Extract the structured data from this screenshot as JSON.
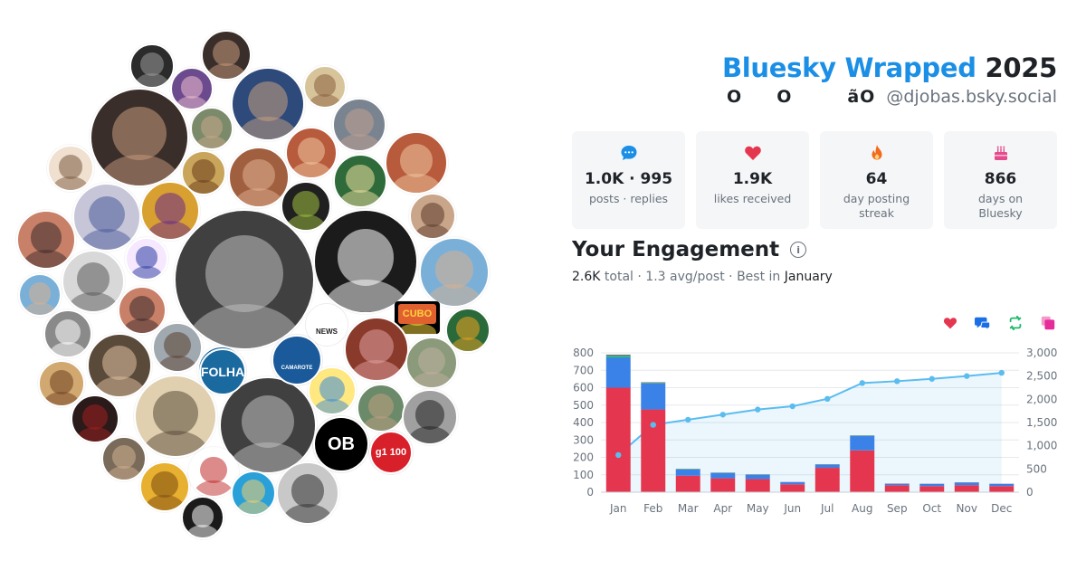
{
  "header": {
    "brand": "Bluesky Wrapped",
    "year": "2025",
    "display_name": "O     O        ãO",
    "handle": "@djobas.bsky.social"
  },
  "stats": [
    {
      "icon": "speech-bubble-icon",
      "value": "1.0K · 995",
      "label": "posts · replies",
      "color": "#1b8fe6"
    },
    {
      "icon": "heart-icon",
      "value": "1.9K",
      "label": "likes received",
      "color": "#e5364f"
    },
    {
      "icon": "flame-icon",
      "value": "64",
      "label": "day posting streak",
      "color": "#f26a1b"
    },
    {
      "icon": "cake-icon",
      "value": "866",
      "label": "days on Bluesky",
      "color": "#e44a8c"
    }
  ],
  "engagement": {
    "title": "Your Engagement",
    "total_value": "2.6K",
    "total_label": "total",
    "avg_text": "1.3 avg/post",
    "best_label": "Best in",
    "best_month": "January",
    "legend_icons": [
      {
        "icon": "heart-icon",
        "color": "#e5364f"
      },
      {
        "icon": "reply-icon",
        "color": "#1b6fe6"
      },
      {
        "icon": "repost-icon",
        "color": "#1fb86b"
      },
      {
        "icon": "quote-icon",
        "color": "#e42c9b"
      }
    ]
  },
  "chart_data": {
    "type": "bar",
    "categories": [
      "Jan",
      "Feb",
      "Mar",
      "Apr",
      "May",
      "Jun",
      "Jul",
      "Aug",
      "Sep",
      "Oct",
      "Nov",
      "Dec"
    ],
    "series": [
      {
        "values": [
          600,
          475,
          95,
          80,
          75,
          45,
          140,
          240,
          40,
          35,
          40,
          35
        ],
        "color": "#e5364f"
      },
      {
        "values": [
          175,
          150,
          35,
          30,
          25,
          12,
          18,
          82,
          8,
          12,
          15,
          12
        ],
        "color": "#3b82e8"
      },
      {
        "values": [
          12,
          5,
          3,
          2,
          2,
          1,
          2,
          3,
          1,
          1,
          1,
          1
        ],
        "color": "#1fb86b"
      },
      {
        "values": [
          3,
          2,
          1,
          1,
          1,
          1,
          1,
          1,
          1,
          1,
          1,
          1
        ],
        "color": "#e42c9b"
      }
    ],
    "cumulative": [
      800,
      1450,
      1560,
      1670,
      1780,
      1850,
      2010,
      2350,
      2390,
      2440,
      2500,
      2570
    ],
    "ylim_left": [
      0,
      800
    ],
    "yticks_left": [
      0,
      100,
      200,
      300,
      400,
      500,
      600,
      700,
      800
    ],
    "ylim_right": [
      0,
      3000
    ],
    "yticks_right": [
      "0",
      "500",
      "1,000",
      "1,500",
      "2,000",
      "2,500",
      "3,000"
    ],
    "line_color": "#5bbcf0",
    "grid": true
  },
  "avatar_cloud": {
    "items": [
      {
        "bg": "#2b2b2b",
        "fg": "#9a9a9a"
      },
      {
        "bg": "#3a2e2a",
        "fg": "#c79a7c"
      },
      {
        "bg": "#b8873a",
        "fg": "#7a4a2a"
      },
      {
        "bg": "#e8e8e8",
        "fg": "#333333"
      },
      {
        "bg": "#6b4a8e",
        "fg": "#f0c0d0"
      },
      {
        "bg": "#c9a37d",
        "fg": "#6a4a30"
      },
      {
        "bg": "#2d4a7a",
        "fg": "#c9a080"
      },
      {
        "bg": "#d8c49a",
        "fg": "#8a6040"
      },
      {
        "bg": "#7a8a6a",
        "fg": "#c8a888"
      },
      {
        "bg": "#a06040",
        "fg": "#e0b090"
      },
      {
        "bg": "#7a8490",
        "fg": "#c0a090"
      },
      {
        "bg": "#b85a3c",
        "fg": "#f0c8a0"
      },
      {
        "bg": "#c8a55a",
        "fg": "#6a3a1a"
      },
      {
        "bg": "#202020",
        "fg": "#a0c040"
      },
      {
        "bg": "#2e6a3a",
        "fg": "#f0e0a0"
      },
      {
        "bg": "#c6c6d8",
        "fg": "#4a5a9a"
      },
      {
        "bg": "#d8a030",
        "fg": "#6a2a8a"
      },
      {
        "bg": "#1b1b1b",
        "fg": "#ffffff"
      },
      {
        "bg": "#c9a58a",
        "fg": "#5a3a2a"
      },
      {
        "bg": "#f0e0d0",
        "fg": "#7a5a40"
      },
      {
        "bg": "#7ab0d8",
        "fg": "#d8b090"
      },
      {
        "bg": "#d8d8d8",
        "fg": "#5a5a5a"
      },
      {
        "bg": "#f5e8ff",
        "fg": "#2a3aa0"
      },
      {
        "bg": "#c88068",
        "fg": "#3a2a2a"
      },
      {
        "bg": "#8a8a8a",
        "fg": "#ffffff"
      },
      {
        "bg": "#5a4a3a",
        "fg": "#e0c0a0"
      },
      {
        "bg": "#3a3a3a",
        "fg": "#e0c0a0"
      },
      {
        "bg": "#d0a870",
        "fg": "#704020"
      },
      {
        "bg": "#a0a8b0",
        "fg": "#5a4030"
      },
      {
        "bg": "#2a1a1a",
        "fg": "#a02020"
      },
      {
        "bg": "#7a6a5a",
        "fg": "#d0b090"
      },
      {
        "bg": "#0a0a0a",
        "fg": "#c02020"
      },
      {
        "bg": "#e8b030",
        "fg": "#7a4a10"
      },
      {
        "bg": "#ffffff",
        "fg": "#c02a2a"
      },
      {
        "bg": "#1a1a1a",
        "fg": "#ffffff"
      },
      {
        "bg": "#2aa0d8",
        "fg": "#f0d070"
      },
      {
        "bg": "#8a3a2a",
        "fg": "#e0a0a0"
      },
      {
        "bg": "#1a5a9a",
        "fg": "#ffffff"
      },
      {
        "bg": "#ffe880",
        "fg": "#3a8ad8"
      },
      {
        "bg": "#6a8a6a",
        "fg": "#c0a080"
      },
      {
        "bg": "#ffffff",
        "fg": "#303030"
      },
      {
        "bg": "#000000",
        "fg": "#ffffff"
      },
      {
        "bg": "#d8202a",
        "fg": "#ffffff"
      },
      {
        "bg": "#404040",
        "fg": "#c0c0c0"
      },
      {
        "bg": "#2a6a3a",
        "fg": "#f0a020"
      },
      {
        "bg": "#8a9a7a",
        "fg": "#c0b0a0"
      },
      {
        "bg": "#1a6aa0",
        "fg": "#ffffff"
      },
      {
        "bg": "#a0a0a0",
        "fg": "#202020"
      },
      {
        "bg": "#e0d0b0",
        "fg": "#5a4a3a"
      },
      {
        "bg": "#9a8a8a",
        "fg": "#e0c0c0"
      },
      {
        "bg": "#a0d0f0",
        "fg": "#806040"
      },
      {
        "bg": "#c8c8c8",
        "fg": "#303030"
      },
      {
        "bg": "#e06030",
        "fg": "#ffe040"
      }
    ],
    "text_badges": [
      {
        "text": "FOLHA",
        "color": "#ffffff"
      },
      {
        "text": "OB",
        "color": "#ffffff"
      },
      {
        "text": "g1 100",
        "color": "#ffffff"
      },
      {
        "text": "CUBO",
        "color": "#ffd040"
      },
      {
        "text": "NEWS",
        "color": "#202020"
      },
      {
        "text": "CAMAROTE",
        "color": "#ffffff"
      }
    ]
  }
}
